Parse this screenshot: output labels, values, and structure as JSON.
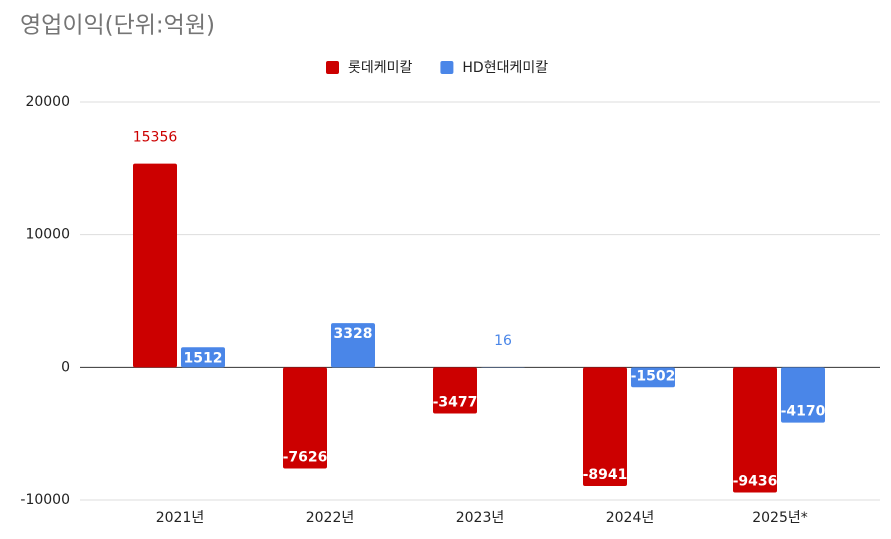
{
  "chart_data": {
    "type": "bar",
    "title": "영업이익(단위:억원)",
    "categories": [
      "2021년",
      "2022년",
      "2023년",
      "2024년",
      "2025년*"
    ],
    "series": [
      {
        "name": "롯데케미칼",
        "color": "#cc0000",
        "values": [
          15356,
          -7626,
          -3477,
          -8941,
          -9436
        ]
      },
      {
        "name": "HD현대케미칼",
        "color": "#4a86e8",
        "values": [
          1512,
          3328,
          16,
          -1502,
          -4170
        ]
      }
    ],
    "ylim": [
      -10000,
      20000
    ],
    "yticks": [
      -10000,
      0,
      10000,
      20000
    ],
    "grid": true,
    "legend": "top"
  }
}
